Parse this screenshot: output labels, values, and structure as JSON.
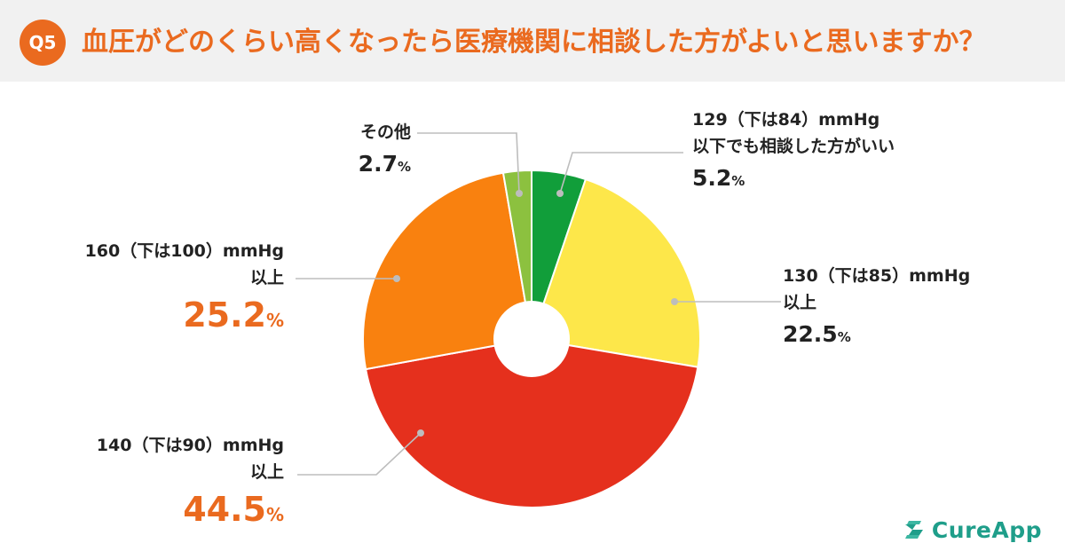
{
  "header": {
    "badge": "Q5",
    "question": "血圧がどのくらい高くなったら医療機関に相談した方がよいと思いますか？"
  },
  "chart_data": {
    "type": "pie",
    "donut": true,
    "slices": [
      {
        "label_line1": "129（下は84）mmHg",
        "label_line2": "以下でも相談した方がいい",
        "value_num": "5.2",
        "value": 5.2,
        "color": "#119e3a"
      },
      {
        "label_line1": "130（下は85）mmHg",
        "label_line2": "以上",
        "value_num": "22.5",
        "value": 22.5,
        "color": "#fde74a"
      },
      {
        "label_line1": "140（下は90）mmHg",
        "label_line2": "以上",
        "value_num": "44.5",
        "value": 44.5,
        "color": "#e5301d"
      },
      {
        "label_line1": "160（下は100）mmHg",
        "label_line2": "以上",
        "value_num": "25.2",
        "value": 25.2,
        "color": "#f9810f"
      },
      {
        "label_line1": "その他",
        "label_line2": "",
        "value_num": "2.7",
        "value": 2.7,
        "color": "#8cc13f"
      }
    ],
    "percent_sign": "%",
    "legend": "none"
  },
  "brand": {
    "name": "CureApp",
    "color": "#1f9e8a"
  }
}
